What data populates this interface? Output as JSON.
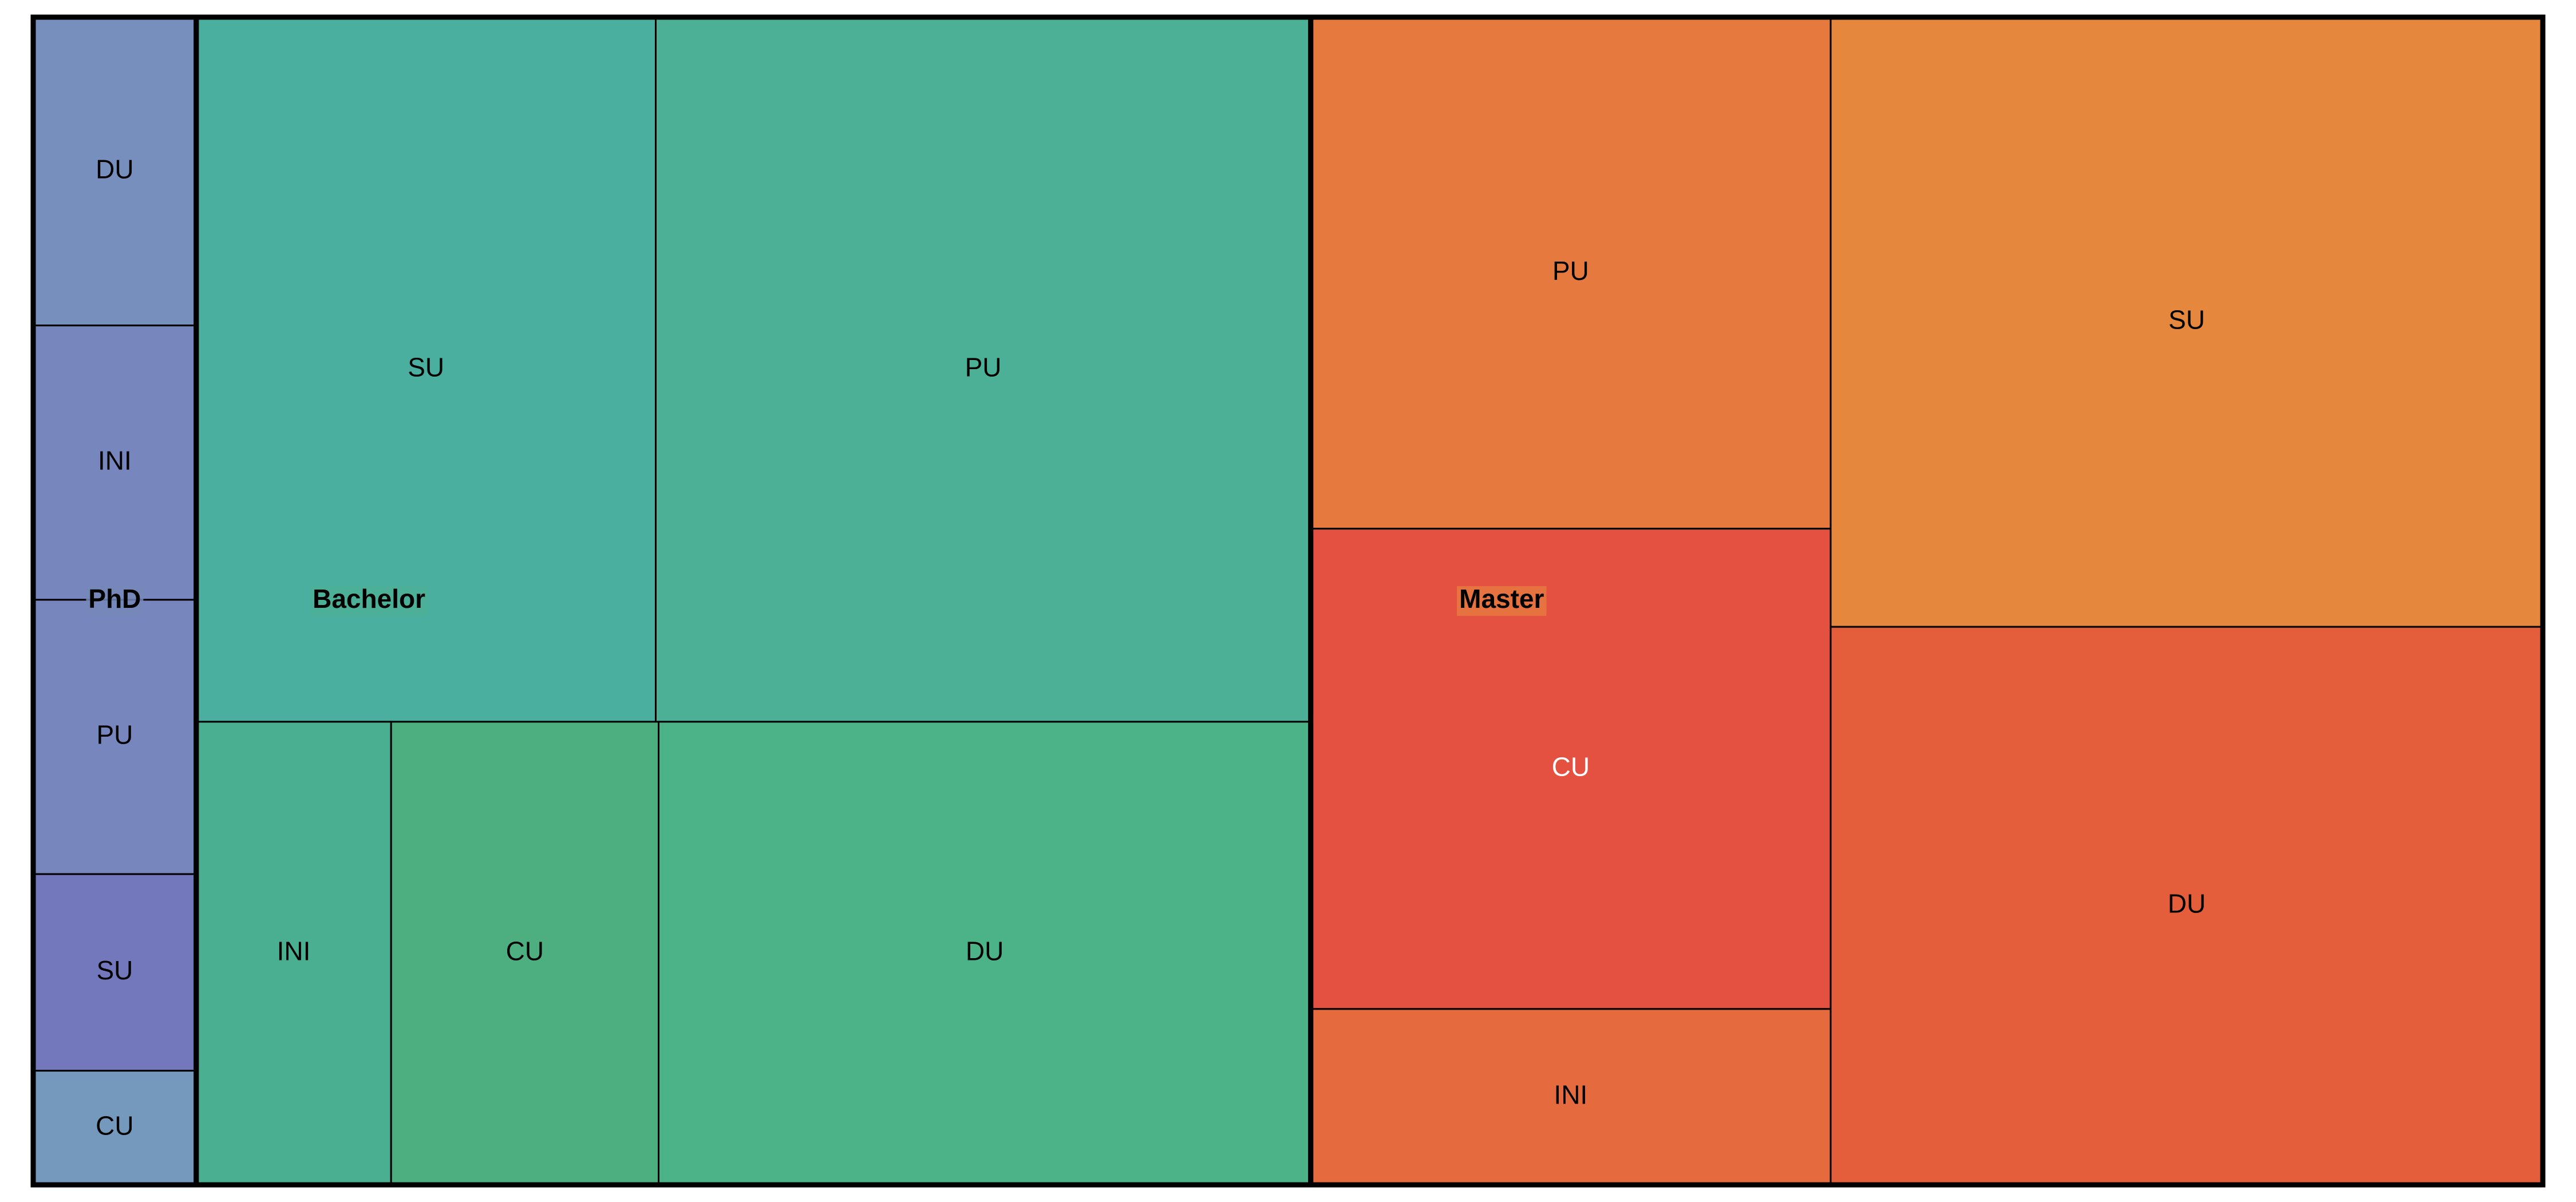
{
  "chart_data": {
    "type": "treemap",
    "title": "",
    "groups": [
      {
        "name": "PhD",
        "color": "#7488B8",
        "leaves": [
          {
            "name": "DU",
            "value": 12.7,
            "color": "#778FBD",
            "label_color": "#000000"
          },
          {
            "name": "INI",
            "value": 11.3,
            "color": "#7786BD",
            "label_color": "#000000"
          },
          {
            "name": "PU",
            "value": 11.3,
            "color": "#7786BD",
            "label_color": "#000000"
          },
          {
            "name": "SU",
            "value": 8.1,
            "color": "#7378BD",
            "label_color": "#000000"
          },
          {
            "name": "CU",
            "value": 4.7,
            "color": "#7599BD",
            "label_color": "#000000"
          }
        ]
      },
      {
        "name": "Bachelor",
        "color": "#4CAF96",
        "leaves": [
          {
            "name": "SU",
            "value": 81.8,
            "color": "#4AAF9F",
            "label_color": "#000000"
          },
          {
            "name": "PU",
            "value": 116.6,
            "color": "#4CB097",
            "label_color": "#000000"
          },
          {
            "name": "INI",
            "value": 22.8,
            "color": "#4AAE90",
            "label_color": "#000000"
          },
          {
            "name": "CU",
            "value": 31.3,
            "color": "#4DAF80",
            "label_color": "#000000"
          },
          {
            "name": "DU",
            "value": 76.3,
            "color": "#4CB288",
            "label_color": "#000000"
          }
        ]
      },
      {
        "name": "Master",
        "color": "#E5783F",
        "leaves": [
          {
            "name": "PU",
            "value": 67.2,
            "color": "#E67A3E",
            "label_color": "#000000"
          },
          {
            "name": "CU",
            "value": 63.1,
            "color": "#E55141",
            "label_color": "#ffffff"
          },
          {
            "name": "INI",
            "value": 23.1,
            "color": "#E56B3F",
            "label_color": "#000000"
          },
          {
            "name": "SU",
            "value": 109.7,
            "color": "#E5883E",
            "label_color": "#000000"
          },
          {
            "name": "DU",
            "value": 100.4,
            "color": "#E55E3C",
            "label_color": "#000000"
          }
        ]
      }
    ]
  }
}
